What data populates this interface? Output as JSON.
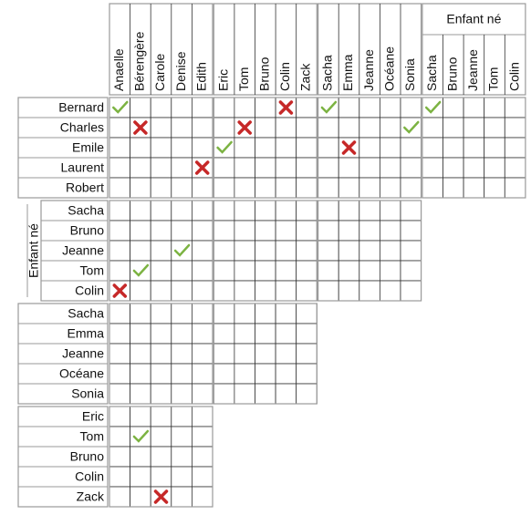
{
  "column_groups": [
    {
      "names": [
        "Anaelle",
        "Bérengère",
        "Carole",
        "Denise",
        "Edith"
      ]
    },
    {
      "names": [
        "Eric",
        "Tom",
        "Bruno",
        "Colin",
        "Zack"
      ]
    },
    {
      "names": [
        "Sacha",
        "Emma",
        "Jeanne",
        "Océane",
        "Sonia"
      ]
    },
    {
      "title": "Enfant né",
      "names": [
        "Sacha",
        "Bruno",
        "Jeanne",
        "Tom",
        "Colin"
      ]
    }
  ],
  "row_groups": [
    {
      "names": [
        "Bernard",
        "Charles",
        "Emile",
        "Laurent",
        "Robert"
      ]
    },
    {
      "title": "Enfant né",
      "names": [
        "Sacha",
        "Bruno",
        "Jeanne",
        "Tom",
        "Colin"
      ]
    },
    {
      "names": [
        "Sacha",
        "Emma",
        "Jeanne",
        "Océane",
        "Sonia"
      ]
    },
    {
      "names": [
        "Eric",
        "Tom",
        "Bruno",
        "Colin",
        "Zack"
      ]
    }
  ],
  "marks": [
    {
      "row_group": 0,
      "row": 0,
      "column_group": 0,
      "column": 0,
      "state": "check"
    },
    {
      "row_group": 0,
      "row": 0,
      "column_group": 1,
      "column": 3,
      "state": "cross"
    },
    {
      "row_group": 0,
      "row": 0,
      "column_group": 2,
      "column": 0,
      "state": "check"
    },
    {
      "row_group": 0,
      "row": 0,
      "column_group": 3,
      "column": 0,
      "state": "check"
    },
    {
      "row_group": 0,
      "row": 1,
      "column_group": 0,
      "column": 1,
      "state": "cross"
    },
    {
      "row_group": 0,
      "row": 1,
      "column_group": 1,
      "column": 1,
      "state": "cross"
    },
    {
      "row_group": 0,
      "row": 1,
      "column_group": 2,
      "column": 4,
      "state": "check"
    },
    {
      "row_group": 0,
      "row": 2,
      "column_group": 1,
      "column": 0,
      "state": "check"
    },
    {
      "row_group": 0,
      "row": 2,
      "column_group": 2,
      "column": 1,
      "state": "cross"
    },
    {
      "row_group": 0,
      "row": 3,
      "column_group": 0,
      "column": 4,
      "state": "cross"
    },
    {
      "row_group": 1,
      "row": 2,
      "column_group": 0,
      "column": 3,
      "state": "check"
    },
    {
      "row_group": 1,
      "row": 3,
      "column_group": 0,
      "column": 1,
      "state": "check"
    },
    {
      "row_group": 1,
      "row": 4,
      "column_group": 0,
      "column": 0,
      "state": "cross"
    },
    {
      "row_group": 3,
      "row": 1,
      "column_group": 0,
      "column": 1,
      "state": "check"
    },
    {
      "row_group": 3,
      "row": 4,
      "column_group": 0,
      "column": 2,
      "state": "cross"
    }
  ]
}
